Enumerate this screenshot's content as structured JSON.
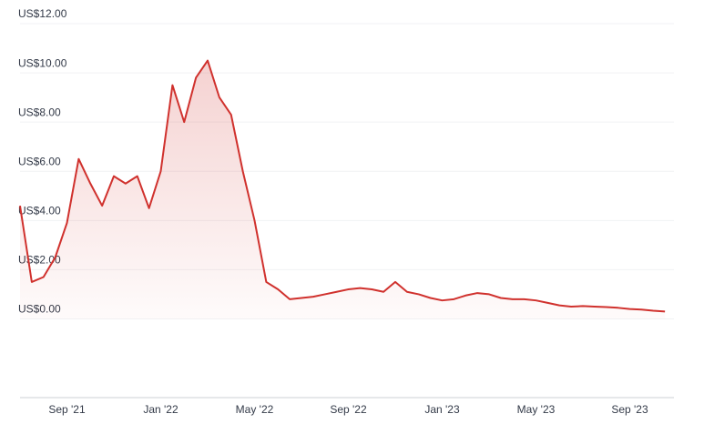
{
  "chart_data": {
    "type": "area",
    "categories": [
      null,
      null,
      null,
      null,
      "Sep '21",
      null,
      null,
      null,
      null,
      null,
      null,
      null,
      "Jan '22",
      null,
      null,
      null,
      null,
      null,
      null,
      null,
      "May '22",
      null,
      null,
      null,
      null,
      null,
      null,
      null,
      "Sep '22",
      null,
      null,
      null,
      null,
      null,
      null,
      null,
      "Jan '23",
      null,
      null,
      null,
      null,
      null,
      null,
      null,
      "May '23",
      null,
      null,
      null,
      null,
      null,
      null,
      null,
      "Sep '23",
      null,
      null,
      null
    ],
    "values": [
      4.6,
      1.5,
      1.7,
      2.5,
      3.9,
      6.5,
      5.5,
      4.6,
      5.8,
      5.5,
      5.8,
      4.5,
      6.0,
      9.5,
      8.0,
      9.8,
      10.5,
      9.0,
      8.3,
      6.0,
      4.0,
      1.5,
      1.2,
      0.8,
      0.85,
      0.9,
      1.0,
      1.1,
      1.2,
      1.25,
      1.2,
      1.1,
      1.5,
      1.1,
      1.0,
      0.85,
      0.75,
      0.8,
      0.95,
      1.05,
      1.0,
      0.85,
      0.8,
      0.8,
      0.75,
      0.65,
      0.55,
      0.5,
      0.52,
      0.5,
      0.48,
      0.45,
      0.4,
      0.38,
      0.33,
      0.3
    ],
    "color": "#d0312d",
    "ylim": [
      -3.2,
      12
    ],
    "yticks": [
      {
        "value": 0,
        "label": "US$0.00"
      },
      {
        "value": 2,
        "label": "US$2.00"
      },
      {
        "value": 4,
        "label": "US$4.00"
      },
      {
        "value": 6,
        "label": "US$6.00"
      },
      {
        "value": 8,
        "label": "US$8.00"
      },
      {
        "value": 10,
        "label": "US$10.00"
      },
      {
        "value": 12,
        "label": "US$12.00"
      }
    ],
    "grid": true
  }
}
